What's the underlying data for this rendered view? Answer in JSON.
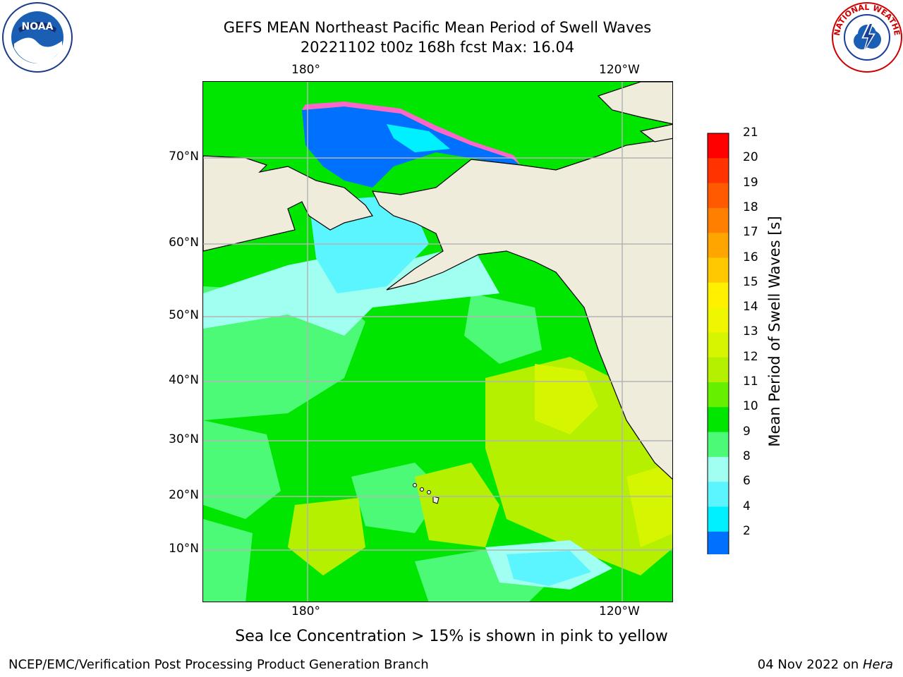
{
  "title": {
    "line1": "GEFS MEAN Northeast Pacific Mean Period of Swell Waves",
    "line2": "20221102 t00z 168h fcst   Max: 16.04"
  },
  "map": {
    "lon_labels_top": [
      "180°",
      "120°W"
    ],
    "lon_labels_bottom": [
      "180°",
      "120°W"
    ],
    "lat_labels": [
      "70°N",
      "60°N",
      "50°N",
      "40°N",
      "30°N",
      "20°N",
      "10°N"
    ],
    "land_color": "#efecdc",
    "gridline_color": "#b4b4b4"
  },
  "colorbar": {
    "label": "Mean Period of Swell Waves [s]",
    "ticks": [
      "21",
      "20",
      "19",
      "18",
      "17",
      "16",
      "15",
      "14",
      "13",
      "12",
      "11",
      "10",
      "9",
      "8",
      "6",
      "4",
      "2"
    ],
    "colors_top_to_bottom": [
      "#ff0000",
      "#ff3300",
      "#ff5a00",
      "#ff8000",
      "#ffa500",
      "#ffc800",
      "#fff000",
      "#f0f500",
      "#d6f500",
      "#b4f000",
      "#66f000",
      "#00e600",
      "#4dfa78",
      "#a0fff0",
      "#5af5ff",
      "#00f0ff",
      "#0070ff"
    ],
    "under_color": "#0000ff"
  },
  "caption": "Sea Ice Concentration > 15% is shown in pink to yellow",
  "footer": {
    "left": "NCEP/EMC/Verification Post Processing Product Generation Branch",
    "right_date": "04 Nov 2022 on ",
    "right_host": "Hera"
  },
  "logos": {
    "left": "NOAA",
    "right": "NATIONAL WEATHER SERVICE"
  }
}
